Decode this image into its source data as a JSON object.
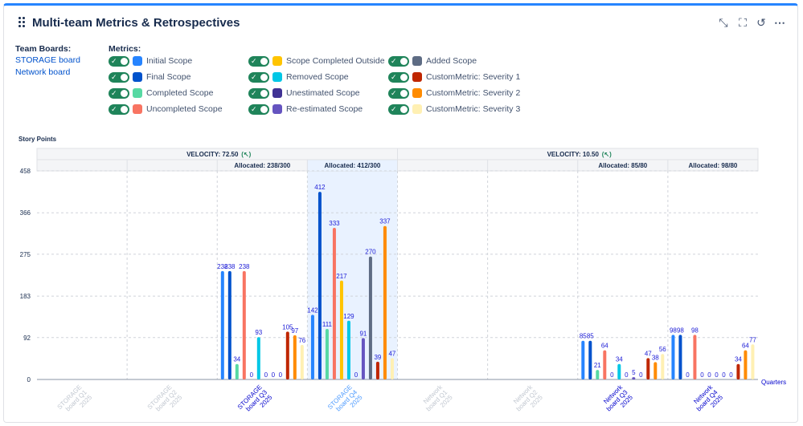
{
  "header": {
    "title": "Multi-team Metrics & Retrospectives",
    "icons": [
      "drag-handle-icon",
      "collapse-icon",
      "fullscreen-icon",
      "refresh-icon",
      "more-icon"
    ]
  },
  "team_boards": {
    "label": "Team Boards:",
    "boards": [
      "STORAGE board",
      "Network board"
    ]
  },
  "metrics": {
    "label": "Metrics:",
    "items": [
      {
        "label": "Initial Scope",
        "color": "#2684ff",
        "enabled": true
      },
      {
        "label": "Final Scope",
        "color": "#0052cc",
        "enabled": true
      },
      {
        "label": "Completed Scope",
        "color": "#57d9a3",
        "enabled": true
      },
      {
        "label": "Uncompleted Scope",
        "color": "#f87462",
        "enabled": true
      },
      {
        "label": "Scope Completed Outside",
        "color": "#ffc400",
        "enabled": true
      },
      {
        "label": "Removed Scope",
        "color": "#00c7e6",
        "enabled": true
      },
      {
        "label": "Unestimated Scope",
        "color": "#403294",
        "enabled": true
      },
      {
        "label": "Re-estimated Scope",
        "color": "#6554c0",
        "enabled": true
      },
      {
        "label": "Added Scope",
        "color": "#5e6c84",
        "enabled": true
      },
      {
        "label": "CustomMetric: Severity 1",
        "color": "#bf2600",
        "enabled": true
      },
      {
        "label": "CustomMetric: Severity 2",
        "color": "#ff8b00",
        "enabled": true
      },
      {
        "label": "CustomMetric: Severity 3",
        "color": "#fff0b3",
        "enabled": true
      }
    ]
  },
  "chart_data": {
    "type": "bar",
    "ylabel": "Story Points",
    "xlabel": "Quarters",
    "yticks": [
      0,
      92,
      183,
      275,
      366,
      458
    ],
    "ylim": [
      0,
      458
    ],
    "grid": true,
    "categories": [
      "STORAGE board Q1 2025",
      "STORAGE board Q2 2025",
      "STORAGE board Q3 2025",
      "STORAGE board Q4 2025",
      "Network board Q1 2025",
      "Network board Q2 2025",
      "Network board Q3 2025",
      "Network board Q4 2025"
    ],
    "category_state": [
      "disabled",
      "disabled",
      "active",
      "highlighted",
      "disabled",
      "disabled",
      "active",
      "active"
    ],
    "highlighted_category": 3,
    "velocity": [
      "VELOCITY: 72.50",
      "VELOCITY: 10.50"
    ],
    "allocated": [
      "",
      "",
      "Allocated: 238/300",
      "Allocated: 412/300",
      "",
      "",
      "Allocated: 85/80",
      "Allocated: 98/80"
    ],
    "series": [
      {
        "name": "Initial Scope",
        "color": "#2684ff",
        "values": [
          null,
          null,
          238,
          142,
          null,
          null,
          85,
          98
        ]
      },
      {
        "name": "Final Scope",
        "color": "#0052cc",
        "values": [
          null,
          null,
          238,
          412,
          null,
          null,
          85,
          98
        ]
      },
      {
        "name": "Completed Scope",
        "color": "#57d9a3",
        "values": [
          null,
          null,
          34,
          111,
          null,
          null,
          21,
          0
        ]
      },
      {
        "name": "Uncompleted Scope",
        "color": "#f87462",
        "values": [
          null,
          null,
          238,
          333,
          null,
          null,
          64,
          98
        ]
      },
      {
        "name": "Scope Completed Outside",
        "color": "#ffc400",
        "values": [
          null,
          null,
          0,
          217,
          null,
          null,
          0,
          0
        ]
      },
      {
        "name": "Removed Scope",
        "color": "#00c7e6",
        "values": [
          null,
          null,
          93,
          129,
          null,
          null,
          34,
          0
        ]
      },
      {
        "name": "Unestimated Scope",
        "color": "#403294",
        "values": [
          null,
          null,
          0,
          0,
          null,
          null,
          0,
          0
        ]
      },
      {
        "name": "Re-estimated Scope",
        "color": "#6554c0",
        "values": [
          null,
          null,
          0,
          91,
          null,
          null,
          5,
          0
        ]
      },
      {
        "name": "Added Scope",
        "color": "#5e6c84",
        "values": [
          null,
          null,
          0,
          270,
          null,
          null,
          0,
          0
        ]
      },
      {
        "name": "CustomMetric: Severity 1",
        "color": "#bf2600",
        "values": [
          null,
          null,
          105,
          39,
          null,
          null,
          47,
          34
        ]
      },
      {
        "name": "CustomMetric: Severity 2",
        "color": "#ff8b00",
        "values": [
          null,
          null,
          97,
          337,
          null,
          null,
          38,
          64
        ]
      },
      {
        "name": "CustomMetric: Severity 3",
        "color": "#fff0b3",
        "values": [
          null,
          null,
          76,
          47,
          null,
          null,
          56,
          77
        ]
      }
    ]
  }
}
